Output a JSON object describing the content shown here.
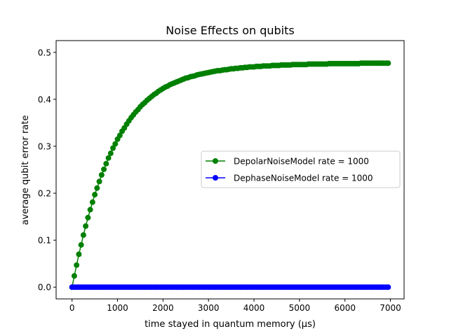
{
  "chart_data": {
    "type": "line",
    "title": "Noise Effects on qubits",
    "xlabel": "time stayed in quantum memory (μs)",
    "ylabel": "average qubit error rate",
    "xlim": [
      -350,
      7300
    ],
    "ylim": [
      -0.025,
      0.525
    ],
    "xticks": [
      0,
      1000,
      2000,
      3000,
      4000,
      5000,
      6000,
      7000
    ],
    "yticks": [
      0.0,
      0.1,
      0.2,
      0.3,
      0.4,
      0.5
    ],
    "xtick_labels": [
      "0",
      "1000",
      "2000",
      "3000",
      "4000",
      "5000",
      "6000",
      "7000"
    ],
    "ytick_labels": [
      "0.0",
      "0.1",
      "0.2",
      "0.3",
      "0.4",
      "0.5"
    ],
    "grid": false,
    "legend_position": "center-right",
    "x": [
      0,
      50,
      100,
      150,
      200,
      250,
      300,
      350,
      400,
      450,
      500,
      550,
      600,
      650,
      700,
      750,
      800,
      850,
      900,
      950,
      1000,
      1050,
      1100,
      1150,
      1200,
      1250,
      1300,
      1350,
      1400,
      1450,
      1500,
      1550,
      1600,
      1650,
      1700,
      1750,
      1800,
      1850,
      1900,
      1950,
      2000,
      2050,
      2100,
      2150,
      2200,
      2250,
      2300,
      2350,
      2400,
      2450,
      2500,
      2550,
      2600,
      2650,
      2700,
      2750,
      2800,
      2850,
      2900,
      2950,
      3000,
      3050,
      3100,
      3150,
      3200,
      3250,
      3300,
      3350,
      3400,
      3450,
      3500,
      3550,
      3600,
      3650,
      3700,
      3750,
      3800,
      3850,
      3900,
      3950,
      4000,
      4050,
      4100,
      4150,
      4200,
      4250,
      4300,
      4350,
      4400,
      4450,
      4500,
      4550,
      4600,
      4650,
      4700,
      4750,
      4800,
      4850,
      4900,
      4950,
      5000,
      5050,
      5100,
      5150,
      5200,
      5250,
      5300,
      5350,
      5400,
      5450,
      5500,
      5550,
      5600,
      5650,
      5700,
      5750,
      5800,
      5850,
      5900,
      5950,
      6000,
      6050,
      6100,
      6150,
      6200,
      6250,
      6300,
      6350,
      6400,
      6450,
      6500,
      6550,
      6600,
      6650,
      6700,
      6750,
      6800,
      6850,
      6900,
      6950
    ],
    "series": [
      {
        "name": "DepolarNoiseModel rate = 1000",
        "color": "#008000",
        "values": [
          0.0,
          0.024,
          0.047,
          0.07,
          0.09,
          0.111,
          0.13,
          0.148,
          0.165,
          0.181,
          0.197,
          0.211,
          0.225,
          0.239,
          0.251,
          0.263,
          0.275,
          0.285,
          0.296,
          0.305,
          0.315,
          0.323,
          0.332,
          0.339,
          0.347,
          0.354,
          0.361,
          0.367,
          0.373,
          0.378,
          0.384,
          0.389,
          0.393,
          0.398,
          0.402,
          0.406,
          0.41,
          0.413,
          0.417,
          0.42,
          0.423,
          0.426,
          0.428,
          0.431,
          0.433,
          0.435,
          0.437,
          0.439,
          0.441,
          0.443,
          0.445,
          0.446,
          0.448,
          0.449,
          0.45,
          0.452,
          0.453,
          0.454,
          0.455,
          0.456,
          0.457,
          0.458,
          0.459,
          0.46,
          0.461,
          0.461,
          0.462,
          0.463,
          0.463,
          0.464,
          0.465,
          0.465,
          0.466,
          0.466,
          0.467,
          0.467,
          0.468,
          0.468,
          0.469,
          0.469,
          0.469,
          0.47,
          0.47,
          0.47,
          0.471,
          0.471,
          0.471,
          0.471,
          0.472,
          0.472,
          0.472,
          0.472,
          0.473,
          0.473,
          0.473,
          0.473,
          0.473,
          0.474,
          0.474,
          0.474,
          0.474,
          0.474,
          0.474,
          0.474,
          0.475,
          0.475,
          0.475,
          0.475,
          0.475,
          0.475,
          0.475,
          0.475,
          0.475,
          0.476,
          0.476,
          0.476,
          0.476,
          0.476,
          0.476,
          0.476,
          0.476,
          0.476,
          0.476,
          0.476,
          0.476,
          0.476,
          0.476,
          0.477,
          0.477,
          0.477,
          0.477,
          0.477,
          0.477,
          0.477,
          0.477,
          0.477,
          0.477,
          0.477,
          0.477,
          0.477
        ]
      },
      {
        "name": "DephaseNoiseModel rate = 1000",
        "color": "#0000ff",
        "values": [
          0,
          0,
          0,
          0,
          0,
          0,
          0,
          0,
          0,
          0,
          0,
          0,
          0,
          0,
          0,
          0,
          0,
          0,
          0,
          0,
          0,
          0,
          0,
          0,
          0,
          0,
          0,
          0,
          0,
          0,
          0,
          0,
          0,
          0,
          0,
          0,
          0,
          0,
          0,
          0,
          0,
          0,
          0,
          0,
          0,
          0,
          0,
          0,
          0,
          0,
          0,
          0,
          0,
          0,
          0,
          0,
          0,
          0,
          0,
          0,
          0,
          0,
          0,
          0,
          0,
          0,
          0,
          0,
          0,
          0,
          0,
          0,
          0,
          0,
          0,
          0,
          0,
          0,
          0,
          0,
          0,
          0,
          0,
          0,
          0,
          0,
          0,
          0,
          0,
          0,
          0,
          0,
          0,
          0,
          0,
          0,
          0,
          0,
          0,
          0,
          0,
          0,
          0,
          0,
          0,
          0,
          0,
          0,
          0,
          0,
          0,
          0,
          0,
          0,
          0,
          0,
          0,
          0,
          0,
          0,
          0,
          0,
          0,
          0,
          0,
          0,
          0,
          0,
          0,
          0,
          0,
          0,
          0,
          0,
          0,
          0,
          0,
          0,
          0,
          0
        ]
      }
    ]
  }
}
